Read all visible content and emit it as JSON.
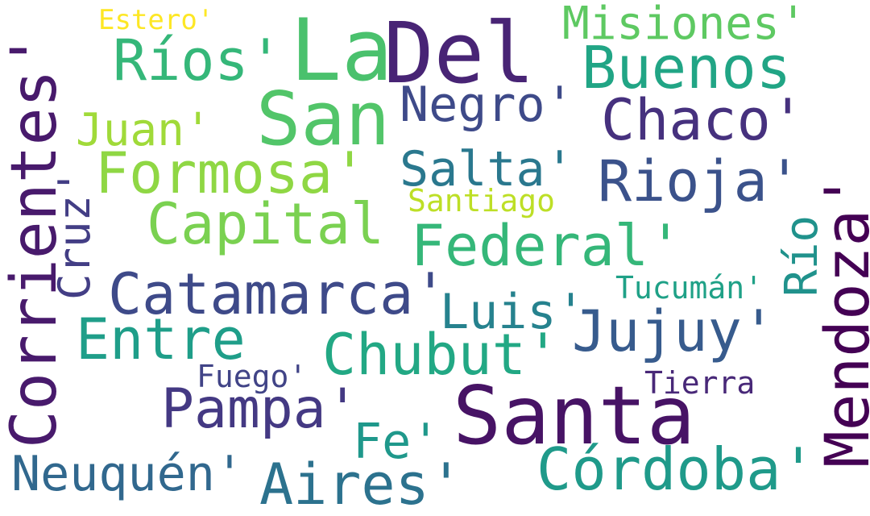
{
  "words": [
    {
      "id": "w01",
      "text": "Estero'",
      "color": "#fde725",
      "vertical": false
    },
    {
      "id": "w02",
      "text": "Misiones'",
      "color": "#5ec962",
      "vertical": false
    },
    {
      "id": "w03",
      "text": "La",
      "color": "#4ac16d",
      "vertical": false
    },
    {
      "id": "w04",
      "text": "Del",
      "color": "#482475",
      "vertical": false
    },
    {
      "id": "w05",
      "text": "Ríos'",
      "color": "#35b779",
      "vertical": false
    },
    {
      "id": "w06",
      "text": "Buenos",
      "color": "#21a585",
      "vertical": false
    },
    {
      "id": "w07",
      "text": "San",
      "color": "#52c569",
      "vertical": false
    },
    {
      "id": "w08",
      "text": "Negro'",
      "color": "#3e4a89",
      "vertical": false
    },
    {
      "id": "w09",
      "text": "Chaco'",
      "color": "#46317e",
      "vertical": false
    },
    {
      "id": "w10",
      "text": "Juan'",
      "color": "#a0da39",
      "vertical": false
    },
    {
      "id": "w11",
      "text": "Formosa'",
      "color": "#8fd744",
      "vertical": false
    },
    {
      "id": "w12",
      "text": "Salta'",
      "color": "#2a788e",
      "vertical": false
    },
    {
      "id": "w13",
      "text": "Rioja'",
      "color": "#3b528b",
      "vertical": false
    },
    {
      "id": "w14",
      "text": "Santiago",
      "color": "#bddf26",
      "vertical": false
    },
    {
      "id": "w15",
      "text": "Capital",
      "color": "#7ad151",
      "vertical": false
    },
    {
      "id": "w16",
      "text": "Federal'",
      "color": "#35b779",
      "vertical": false
    },
    {
      "id": "w17",
      "text": "Catamarca'",
      "color": "#3e4a89",
      "vertical": false
    },
    {
      "id": "w18",
      "text": "Tucumán'",
      "color": "#1fa187",
      "vertical": false
    },
    {
      "id": "w19",
      "text": "Luis'",
      "color": "#26828e",
      "vertical": false
    },
    {
      "id": "w20",
      "text": "Entre",
      "color": "#1f9e89",
      "vertical": false
    },
    {
      "id": "w21",
      "text": "Chubut'",
      "color": "#22a884",
      "vertical": false
    },
    {
      "id": "w22",
      "text": "Jujuy'",
      "color": "#375b8d",
      "vertical": false
    },
    {
      "id": "w23",
      "text": "Fuego'",
      "color": "#414487",
      "vertical": false
    },
    {
      "id": "w24",
      "text": "Tierra",
      "color": "#482878",
      "vertical": false
    },
    {
      "id": "w25",
      "text": "Pampa'",
      "color": "#443983",
      "vertical": false
    },
    {
      "id": "w26",
      "text": "Santa",
      "color": "#471365",
      "vertical": false
    },
    {
      "id": "w27",
      "text": "Fe'",
      "color": "#1f988b",
      "vertical": false
    },
    {
      "id": "w28",
      "text": "Neuquén'",
      "color": "#31688e",
      "vertical": false
    },
    {
      "id": "w29",
      "text": "Aires'",
      "color": "#2c728e",
      "vertical": false
    },
    {
      "id": "w30",
      "text": "Córdoba'",
      "color": "#1f9a8a",
      "vertical": false
    },
    {
      "id": "w31",
      "text": "Corrientes'",
      "color": "#481a6c",
      "vertical": true
    },
    {
      "id": "w32",
      "text": "Cruz'",
      "color": "#433e85",
      "vertical": true
    },
    {
      "id": "w33",
      "text": "Río",
      "color": "#20928c",
      "vertical": true
    },
    {
      "id": "w34",
      "text": "Mendoza'",
      "color": "#440154",
      "vertical": true
    }
  ]
}
